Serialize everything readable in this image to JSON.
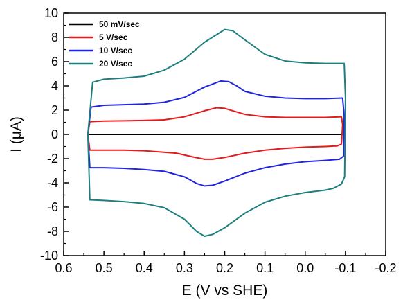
{
  "chart_data": {
    "type": "line",
    "title": "",
    "xlabel": "E (V vs SHE)",
    "ylabel": "I (μA)",
    "xlim": [
      0.6,
      -0.2
    ],
    "ylim": [
      -10,
      10
    ],
    "x_reversed": true,
    "grid": false,
    "legend_position": "top-left",
    "x_ticks": [
      "0.6",
      "0.5",
      "0.4",
      "0.3",
      "0.2",
      "0.1",
      "0.0",
      "-0.1",
      "-0.2"
    ],
    "y_ticks": [
      "-10",
      "-8",
      "-6",
      "-4",
      "-2",
      "0",
      "2",
      "4",
      "6",
      "8",
      "10"
    ],
    "series": [
      {
        "name": "50 mV/sec",
        "color": "#000000",
        "points": [
          [
            0.54,
            0.0
          ],
          [
            -0.09,
            0.0
          ]
        ]
      },
      {
        "name": "5 V/sec",
        "color": "#e41a1c",
        "points": [
          [
            0.54,
            0.0
          ],
          [
            0.535,
            1.05
          ],
          [
            0.5,
            1.1
          ],
          [
            0.45,
            1.12
          ],
          [
            0.4,
            1.15
          ],
          [
            0.35,
            1.2
          ],
          [
            0.3,
            1.45
          ],
          [
            0.25,
            1.95
          ],
          [
            0.22,
            2.2
          ],
          [
            0.2,
            2.15
          ],
          [
            0.18,
            1.95
          ],
          [
            0.15,
            1.65
          ],
          [
            0.1,
            1.45
          ],
          [
            0.05,
            1.4
          ],
          [
            0.0,
            1.4
          ],
          [
            -0.05,
            1.4
          ],
          [
            -0.09,
            1.45
          ],
          [
            -0.093,
            0.8
          ],
          [
            -0.09,
            -0.8
          ],
          [
            -0.08,
            -0.95
          ],
          [
            -0.05,
            -1.0
          ],
          [
            0.0,
            -1.05
          ],
          [
            0.05,
            -1.15
          ],
          [
            0.1,
            -1.3
          ],
          [
            0.15,
            -1.55
          ],
          [
            0.2,
            -1.9
          ],
          [
            0.23,
            -2.05
          ],
          [
            0.25,
            -2.05
          ],
          [
            0.28,
            -1.85
          ],
          [
            0.32,
            -1.55
          ],
          [
            0.4,
            -1.35
          ],
          [
            0.45,
            -1.3
          ],
          [
            0.5,
            -1.3
          ],
          [
            0.535,
            -1.3
          ]
        ]
      },
      {
        "name": "10 V/sec",
        "color": "#1f24e0",
        "points": [
          [
            0.54,
            0.0
          ],
          [
            0.532,
            2.25
          ],
          [
            0.5,
            2.4
          ],
          [
            0.45,
            2.45
          ],
          [
            0.4,
            2.5
          ],
          [
            0.35,
            2.65
          ],
          [
            0.3,
            3.05
          ],
          [
            0.25,
            3.9
          ],
          [
            0.21,
            4.4
          ],
          [
            0.19,
            4.35
          ],
          [
            0.17,
            4.0
          ],
          [
            0.15,
            3.55
          ],
          [
            0.1,
            3.15
          ],
          [
            0.05,
            3.0
          ],
          [
            0.0,
            2.95
          ],
          [
            -0.05,
            2.95
          ],
          [
            -0.093,
            3.0
          ],
          [
            -0.097,
            1.5
          ],
          [
            -0.095,
            -1.8
          ],
          [
            -0.085,
            -2.05
          ],
          [
            -0.05,
            -2.15
          ],
          [
            0.0,
            -2.25
          ],
          [
            0.05,
            -2.45
          ],
          [
            0.1,
            -2.75
          ],
          [
            0.15,
            -3.2
          ],
          [
            0.2,
            -3.85
          ],
          [
            0.23,
            -4.2
          ],
          [
            0.25,
            -4.25
          ],
          [
            0.27,
            -4.05
          ],
          [
            0.3,
            -3.5
          ],
          [
            0.35,
            -3.05
          ],
          [
            0.4,
            -2.9
          ],
          [
            0.45,
            -2.8
          ],
          [
            0.5,
            -2.75
          ],
          [
            0.535,
            -2.75
          ]
        ]
      },
      {
        "name": "20 V/sec",
        "color": "#1d7f7d",
        "points": [
          [
            0.54,
            0.0
          ],
          [
            0.528,
            4.3
          ],
          [
            0.5,
            4.55
          ],
          [
            0.45,
            4.65
          ],
          [
            0.4,
            4.8
          ],
          [
            0.35,
            5.3
          ],
          [
            0.3,
            6.2
          ],
          [
            0.25,
            7.6
          ],
          [
            0.2,
            8.65
          ],
          [
            0.18,
            8.55
          ],
          [
            0.15,
            7.8
          ],
          [
            0.1,
            6.6
          ],
          [
            0.05,
            6.05
          ],
          [
            0.0,
            5.9
          ],
          [
            -0.05,
            5.85
          ],
          [
            -0.097,
            5.85
          ],
          [
            -0.1,
            3.0
          ],
          [
            -0.098,
            -3.5
          ],
          [
            -0.09,
            -4.1
          ],
          [
            -0.07,
            -4.45
          ],
          [
            -0.05,
            -4.6
          ],
          [
            0.0,
            -4.8
          ],
          [
            0.05,
            -5.1
          ],
          [
            0.1,
            -5.6
          ],
          [
            0.15,
            -6.5
          ],
          [
            0.2,
            -7.7
          ],
          [
            0.23,
            -8.25
          ],
          [
            0.25,
            -8.4
          ],
          [
            0.27,
            -8.0
          ],
          [
            0.3,
            -7.0
          ],
          [
            0.35,
            -6.05
          ],
          [
            0.4,
            -5.7
          ],
          [
            0.45,
            -5.55
          ],
          [
            0.5,
            -5.45
          ],
          [
            0.535,
            -5.4
          ]
        ]
      }
    ]
  }
}
